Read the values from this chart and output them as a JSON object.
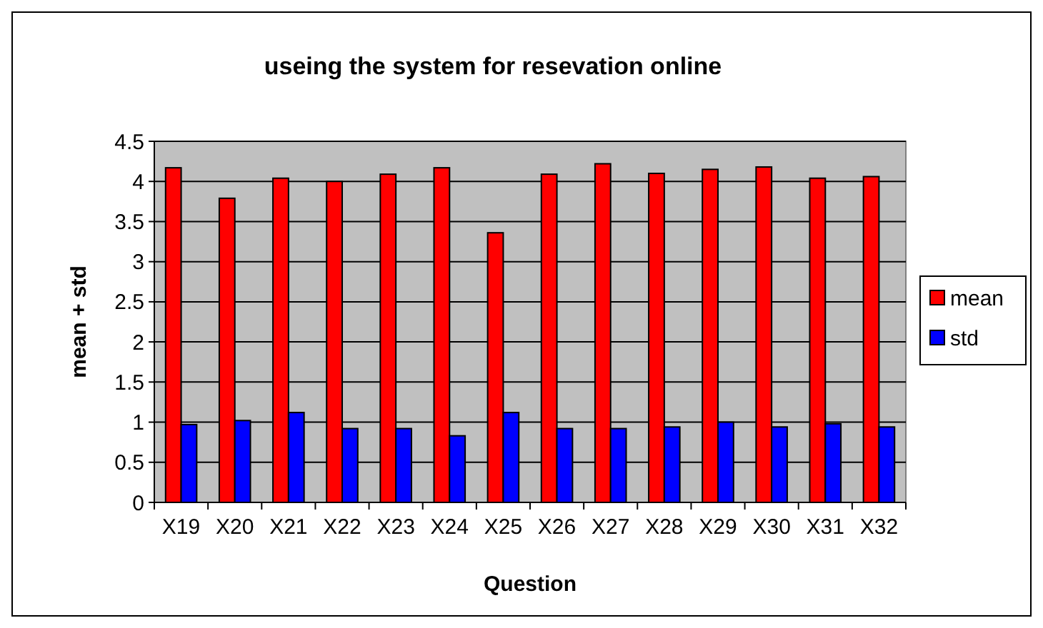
{
  "chart_data": {
    "type": "bar",
    "title": "useing the system for resevation online",
    "xlabel": "Question",
    "ylabel": "mean + std",
    "categories": [
      "X19",
      "X20",
      "X21",
      "X22",
      "X23",
      "X24",
      "X25",
      "X26",
      "X27",
      "X28",
      "X29",
      "X30",
      "X31",
      "X32"
    ],
    "series": [
      {
        "name": "mean",
        "color": "#ff0000",
        "values": [
          4.17,
          3.79,
          4.04,
          4.0,
          4.09,
          4.17,
          3.36,
          4.09,
          4.22,
          4.1,
          4.15,
          4.18,
          4.04,
          4.06
        ]
      },
      {
        "name": "std",
        "color": "#0000ff",
        "values": [
          0.97,
          1.02,
          1.12,
          0.92,
          0.92,
          0.83,
          1.12,
          0.92,
          0.92,
          0.94,
          1.0,
          0.94,
          0.98,
          0.94
        ]
      }
    ],
    "ylim": [
      0,
      4.5
    ],
    "yticks": [
      0,
      0.5,
      1,
      1.5,
      2,
      2.5,
      3,
      3.5,
      4,
      4.5
    ],
    "grid": "y",
    "legend": "right"
  }
}
